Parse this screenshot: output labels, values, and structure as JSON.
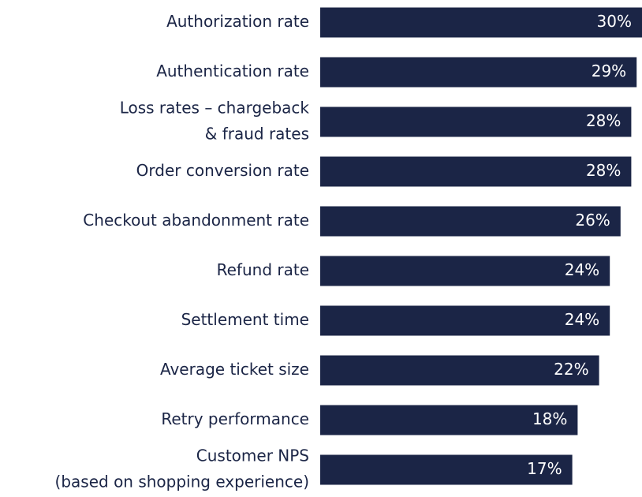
{
  "chart_data": {
    "type": "bar",
    "orientation": "horizontal",
    "categories": [
      "Authorization rate",
      "Authentication rate",
      [
        "Loss rates – chargeback",
        "& fraud rates"
      ],
      "Order conversion rate",
      "Checkout abandonment rate",
      "Refund rate",
      "Settlement time",
      "Average ticket size",
      "Retry performance",
      [
        "Customer NPS",
        "(based on shopping experience)"
      ]
    ],
    "values": [
      30,
      29,
      28,
      28,
      26,
      24,
      24,
      22,
      18,
      17
    ],
    "value_labels": [
      "30%",
      "29%",
      "28%",
      "28%",
      "26%",
      "24%",
      "24%",
      "22%",
      "18%",
      "17%"
    ],
    "color": "#1b2546",
    "xlim": [
      -30,
      30
    ]
  }
}
